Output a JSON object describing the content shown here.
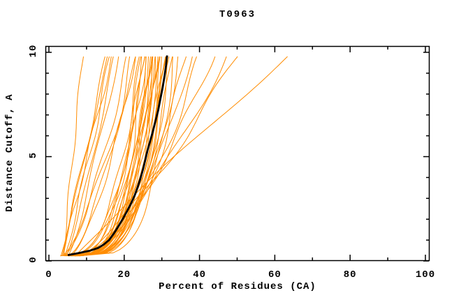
{
  "chart_data": {
    "type": "line",
    "title": "T0963",
    "xlabel": "Percent of Residues (CA)",
    "ylabel": "Distance Cutoff, A",
    "xlim": [
      0,
      101
    ],
    "ylim": [
      0,
      10.3
    ],
    "grid": false,
    "legend": "none",
    "x_major_ticks": [
      0,
      20,
      40,
      60,
      80,
      100
    ],
    "x_minor_ticks": [
      10,
      30,
      50,
      70,
      90
    ],
    "y_major_ticks": [
      0,
      5,
      10
    ],
    "y_minor_ticks": [
      1,
      2,
      3,
      4,
      6,
      7,
      8,
      9
    ],
    "colors": {
      "model_curves": "#ff8c00",
      "highlight_curve": "#000000",
      "axis": "#000000",
      "background": "#ffffff"
    },
    "curve_y_span": [
      0.24,
      9.8
    ],
    "black_curve_points": [
      [
        5,
        0.28
      ],
      [
        8,
        0.38
      ],
      [
        11,
        0.5
      ],
      [
        13,
        0.62
      ],
      [
        14.5,
        0.78
      ],
      [
        16,
        1.0
      ],
      [
        17.2,
        1.3
      ],
      [
        18.4,
        1.65
      ],
      [
        19.6,
        2.0
      ],
      [
        20.8,
        2.4
      ],
      [
        21.8,
        2.75
      ],
      [
        22.8,
        3.15
      ],
      [
        23.6,
        3.55
      ],
      [
        24.3,
        3.95
      ],
      [
        25,
        4.4
      ],
      [
        25.6,
        4.85
      ],
      [
        26.2,
        5.3
      ],
      [
        26.9,
        5.75
      ],
      [
        27.6,
        6.2
      ],
      [
        28.3,
        6.7
      ],
      [
        29,
        7.2
      ],
      [
        29.6,
        7.75
      ],
      [
        30.2,
        8.3
      ],
      [
        30.7,
        8.85
      ],
      [
        31.1,
        9.35
      ],
      [
        31.4,
        9.85
      ]
    ],
    "orange_curves": [
      {
        "x0": 4.0,
        "xt": 9.0,
        "p": 1.1,
        "w": 0.3,
        "f": 1.3,
        "ph": 0.5
      },
      {
        "x0": 3.2,
        "xt": 15.2,
        "p": 0.95,
        "w": 0.4,
        "f": 1.1,
        "ph": 1.0
      },
      {
        "x0": 3.8,
        "xt": 15.8,
        "p": 1.05,
        "w": 0.3,
        "f": 0.9,
        "ph": 2.0
      },
      {
        "x0": 4.2,
        "xt": 16.3,
        "p": 0.9,
        "w": 0.5,
        "f": 1.2,
        "ph": 0.3
      },
      {
        "x0": 3.5,
        "xt": 16.8,
        "p": 1.0,
        "w": 0.4,
        "f": 1.4,
        "ph": 2.6
      },
      {
        "x0": 4.6,
        "xt": 17.4,
        "p": 0.85,
        "w": 0.3,
        "f": 1.0,
        "ph": 1.5
      },
      {
        "x0": 5.0,
        "xt": 18.2,
        "p": 0.8,
        "w": 0.5,
        "f": 0.8,
        "ph": 0.9
      },
      {
        "x0": 4.0,
        "xt": 21.0,
        "p": 0.7,
        "w": 0.5,
        "f": 1.1,
        "ph": 0.2
      },
      {
        "x0": 4.8,
        "xt": 22.0,
        "p": 0.6,
        "w": 0.6,
        "f": 0.9,
        "ph": 1.8
      },
      {
        "x0": 5.5,
        "xt": 23.0,
        "p": 0.65,
        "w": 0.4,
        "f": 1.3,
        "ph": 2.9
      },
      {
        "x0": 3.6,
        "xt": 23.5,
        "p": 0.75,
        "w": 0.5,
        "f": 1.0,
        "ph": 1.2
      },
      {
        "x0": 4.5,
        "xt": 24.2,
        "p": 0.38,
        "w": 0.5,
        "f": 1.2,
        "ph": 0.4
      },
      {
        "x0": 5.2,
        "xt": 24.8,
        "p": 0.33,
        "w": 0.4,
        "f": 0.9,
        "ph": 1.1
      },
      {
        "x0": 6.3,
        "xt": 24.5,
        "p": 0.35,
        "w": 0.5,
        "f": 1.05,
        "ph": 2.1
      },
      {
        "x0": 3.0,
        "xt": 25.0,
        "p": 0.34,
        "w": 0.5,
        "f": 1.15,
        "ph": 2.6
      },
      {
        "x0": 6.0,
        "xt": 25.3,
        "p": 0.3,
        "w": 0.6,
        "f": 1.1,
        "ph": 2.2
      },
      {
        "x0": 4.0,
        "xt": 25.8,
        "p": 0.36,
        "w": 0.5,
        "f": 1.3,
        "ph": 3.0
      },
      {
        "x0": 5.8,
        "xt": 26.2,
        "p": 0.28,
        "w": 0.4,
        "f": 1.0,
        "ph": 0.7
      },
      {
        "x0": 6.5,
        "xt": 26.6,
        "p": 0.32,
        "w": 0.5,
        "f": 0.8,
        "ph": 1.9
      },
      {
        "x0": 5.4,
        "xt": 26.9,
        "p": 0.31,
        "w": 0.5,
        "f": 1.35,
        "ph": 1.35
      },
      {
        "x0": 5.0,
        "xt": 27.0,
        "p": 0.26,
        "w": 0.6,
        "f": 1.2,
        "ph": 2.5
      },
      {
        "x0": 7.0,
        "xt": 27.4,
        "p": 0.3,
        "w": 0.4,
        "f": 1.1,
        "ph": 0.2
      },
      {
        "x0": 4.4,
        "xt": 27.6,
        "p": 0.29,
        "w": 0.5,
        "f": 0.95,
        "ph": 0.15
      },
      {
        "x0": 6.2,
        "xt": 27.8,
        "p": 0.24,
        "w": 0.5,
        "f": 0.9,
        "ph": 1.4
      },
      {
        "x0": 5.5,
        "xt": 28.2,
        "p": 0.28,
        "w": 0.6,
        "f": 1.3,
        "ph": 2.8
      },
      {
        "x0": 7.4,
        "xt": 28.6,
        "p": 0.32,
        "w": 0.4,
        "f": 1.0,
        "ph": 0.9
      },
      {
        "x0": 5.9,
        "xt": 28.9,
        "p": 0.27,
        "w": 0.6,
        "f": 1.25,
        "ph": 1.85
      },
      {
        "x0": 6.8,
        "xt": 29.0,
        "p": 0.26,
        "w": 0.5,
        "f": 1.2,
        "ph": 1.7
      },
      {
        "x0": 5.2,
        "xt": 29.4,
        "p": 0.3,
        "w": 0.6,
        "f": 0.8,
        "ph": 2.4
      },
      {
        "x0": 7.8,
        "xt": 29.8,
        "p": 0.24,
        "w": 0.4,
        "f": 1.1,
        "ph": 0.5
      },
      {
        "x0": 6.0,
        "xt": 30.2,
        "p": 0.28,
        "w": 0.5,
        "f": 0.9,
        "ph": 1.2
      },
      {
        "x0": 7.2,
        "xt": 30.6,
        "p": 0.32,
        "w": 0.6,
        "f": 1.2,
        "ph": 2.0
      },
      {
        "x0": 6.9,
        "xt": 30.9,
        "p": 0.29,
        "w": 0.4,
        "f": 1.05,
        "ph": 2.95
      },
      {
        "x0": 6.6,
        "xt": 31.0,
        "p": 0.26,
        "w": 0.4,
        "f": 1.0,
        "ph": 2.7
      },
      {
        "x0": 8.0,
        "xt": 31.5,
        "p": 0.3,
        "w": 0.5,
        "f": 1.3,
        "ph": 0.8
      },
      {
        "x0": 7.0,
        "xt": 32.0,
        "p": 0.27,
        "w": 0.6,
        "f": 0.9,
        "ph": 1.6
      },
      {
        "x0": 7.6,
        "xt": 32.6,
        "p": 0.31,
        "w": 0.4,
        "f": 1.1,
        "ph": 2.3
      },
      {
        "x0": 8.2,
        "xt": 33.2,
        "p": 0.25,
        "w": 0.5,
        "f": 1.0,
        "ph": 0.3
      },
      {
        "x0": 7.5,
        "xt": 34.5,
        "p": 0.35,
        "w": 0.6,
        "f": 0.9,
        "ph": 1.0
      },
      {
        "x0": 8.0,
        "xt": 36.2,
        "p": 0.4,
        "w": 0.7,
        "f": 1.1,
        "ph": 2.2
      },
      {
        "x0": 6.8,
        "xt": 37.6,
        "p": 0.45,
        "w": 0.6,
        "f": 0.8,
        "ph": 0.6
      },
      {
        "x0": 8.5,
        "xt": 40.0,
        "p": 0.55,
        "w": 0.8,
        "f": 1.0,
        "ph": 1.5
      },
      {
        "x0": 7.2,
        "xt": 43.5,
        "p": 0.6,
        "w": 0.7,
        "f": 1.2,
        "ph": 2.8
      },
      {
        "x0": 9.0,
        "xt": 47.0,
        "p": 0.7,
        "w": 0.8,
        "f": 0.9,
        "ph": 0.4
      },
      {
        "x0": 8.2,
        "xt": 50.0,
        "p": 0.78,
        "w": 0.9,
        "f": 1.1,
        "ph": 1.9
      },
      {
        "x0": 7.0,
        "xt": 63.0,
        "p": 1.05,
        "w": 0.8,
        "f": 0.8,
        "ph": 1.1
      }
    ]
  }
}
